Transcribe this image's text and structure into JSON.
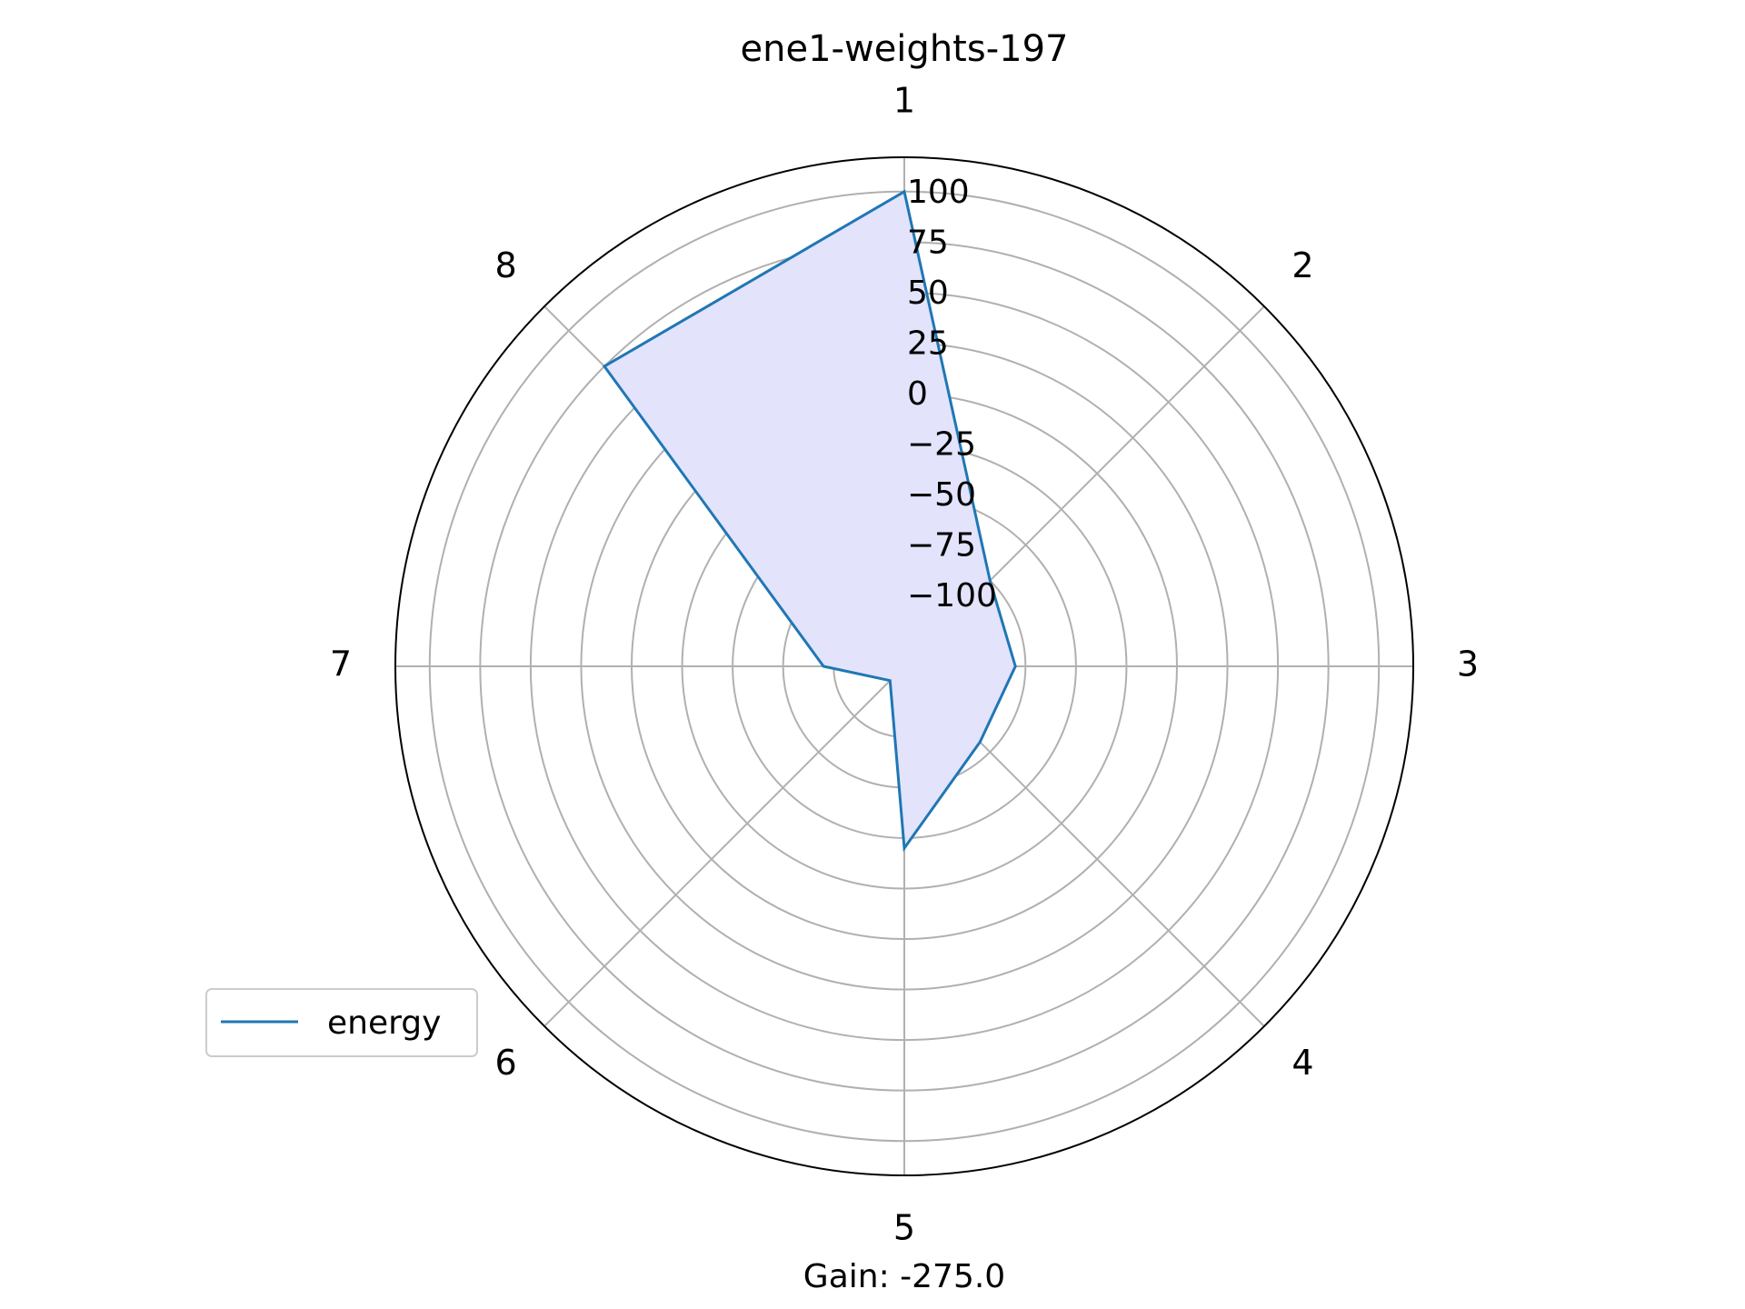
{
  "chart_data": {
    "type": "radar",
    "title": "ene1-weights-197",
    "categories": [
      "1",
      "2",
      "3",
      "4",
      "5",
      "6",
      "7",
      "8"
    ],
    "series": [
      {
        "name": "energy",
        "values": [
          100,
          -75,
          -80,
          -82,
          -45,
          -125,
          -95,
          75
        ]
      }
    ],
    "rlim": [
      -135,
      117
    ],
    "rticks": [
      "100",
      "75",
      "50",
      "25",
      "0",
      "−25",
      "−50",
      "−75",
      "−100"
    ],
    "rtick_values": [
      100,
      75,
      50,
      25,
      0,
      -25,
      -50,
      -75,
      -100
    ],
    "grid": true,
    "legend": {
      "position": "lower-left"
    },
    "footer": "Gain: -275.0",
    "colors": {
      "line": "#1f77b4",
      "fill": "#e3e3fb",
      "grid": "#b0b0b0",
      "frame": "#000000"
    }
  }
}
